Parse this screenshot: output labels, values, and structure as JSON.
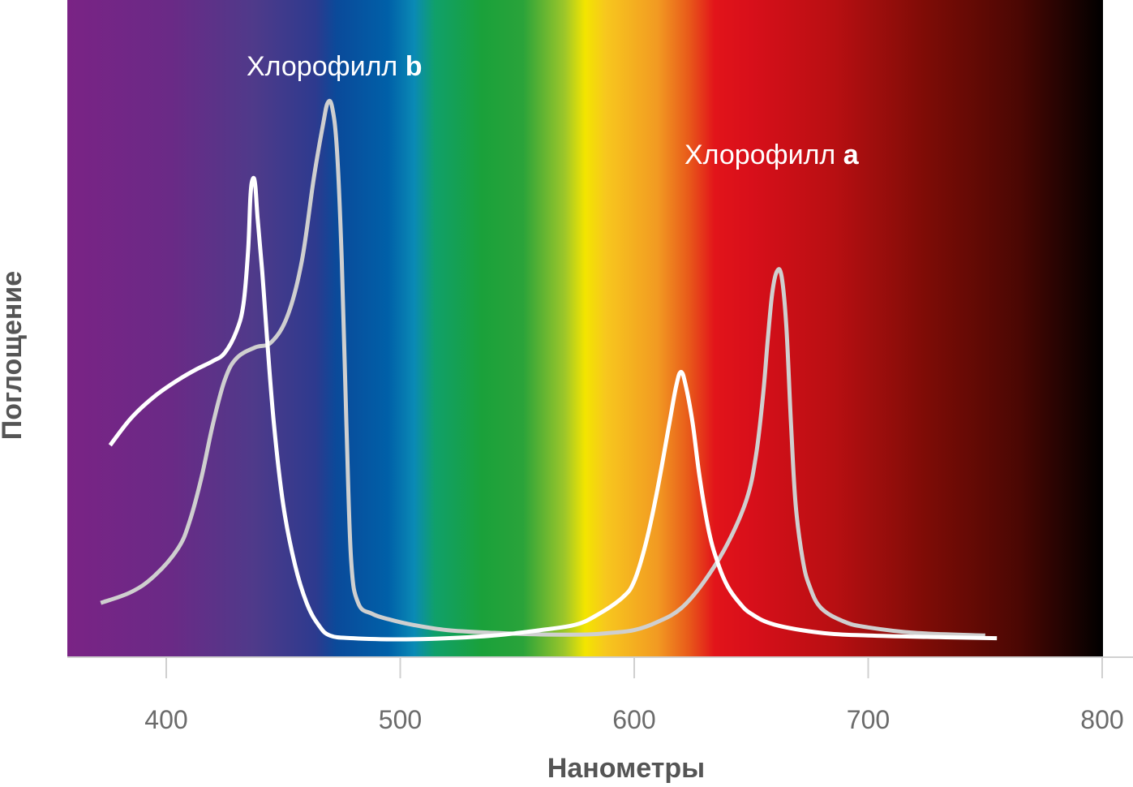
{
  "chart_data": {
    "type": "line",
    "xlabel": "Нанометры",
    "ylabel": "Поглощение",
    "xlim": [
      358,
      800
    ],
    "ylim": [
      0,
      100
    ],
    "xticks": [
      400,
      500,
      600,
      700,
      800
    ],
    "grid": false,
    "legend": "none",
    "background": "visible-spectrum-gradient",
    "series": [
      {
        "label_prefix": "Хлорофилл ",
        "label_bold": "a",
        "color": "#ffffff",
        "points": [
          [
            376,
            36
          ],
          [
            385,
            41
          ],
          [
            395,
            45
          ],
          [
            405,
            48
          ],
          [
            413,
            50
          ],
          [
            420,
            51.5
          ],
          [
            425,
            53
          ],
          [
            430,
            57
          ],
          [
            433,
            62
          ],
          [
            435,
            72
          ],
          [
            436,
            82
          ],
          [
            437,
            85
          ],
          [
            438,
            84
          ],
          [
            439,
            78
          ],
          [
            441,
            68
          ],
          [
            443,
            56
          ],
          [
            446,
            40
          ],
          [
            450,
            25
          ],
          [
            455,
            14
          ],
          [
            460,
            7
          ],
          [
            465,
            3
          ],
          [
            470,
            1
          ],
          [
            480,
            0.5
          ],
          [
            500,
            0.3
          ],
          [
            520,
            0.5
          ],
          [
            540,
            1
          ],
          [
            560,
            2
          ],
          [
            575,
            3
          ],
          [
            585,
            5
          ],
          [
            595,
            8
          ],
          [
            600,
            11
          ],
          [
            605,
            18
          ],
          [
            610,
            28
          ],
          [
            615,
            40
          ],
          [
            618,
            47
          ],
          [
            620,
            49.5
          ],
          [
            622,
            47
          ],
          [
            625,
            40
          ],
          [
            628,
            30
          ],
          [
            632,
            20
          ],
          [
            636,
            14
          ],
          [
            640,
            10
          ],
          [
            645,
            7
          ],
          [
            650,
            5
          ],
          [
            660,
            3
          ],
          [
            680,
            1.5
          ],
          [
            700,
            1
          ],
          [
            730,
            0.7
          ],
          [
            755,
            0.5
          ]
        ]
      },
      {
        "label_prefix": "Хлорофилл ",
        "label_bold": "b",
        "color": "#cfcfcf",
        "points": [
          [
            372,
            7
          ],
          [
            385,
            9
          ],
          [
            395,
            12
          ],
          [
            405,
            17
          ],
          [
            410,
            22
          ],
          [
            415,
            30
          ],
          [
            420,
            40
          ],
          [
            425,
            48
          ],
          [
            430,
            52
          ],
          [
            438,
            54
          ],
          [
            445,
            55
          ],
          [
            452,
            60
          ],
          [
            458,
            70
          ],
          [
            463,
            85
          ],
          [
            467,
            95
          ],
          [
            469,
            99
          ],
          [
            471,
            98
          ],
          [
            473,
            90
          ],
          [
            475,
            70
          ],
          [
            477,
            40
          ],
          [
            479,
            15
          ],
          [
            482,
            7
          ],
          [
            488,
            5
          ],
          [
            495,
            4
          ],
          [
            505,
            3
          ],
          [
            520,
            2
          ],
          [
            540,
            1.5
          ],
          [
            560,
            1.2
          ],
          [
            580,
            1.2
          ],
          [
            590,
            1.5
          ],
          [
            600,
            2
          ],
          [
            610,
            3.5
          ],
          [
            620,
            6
          ],
          [
            630,
            11
          ],
          [
            640,
            18
          ],
          [
            648,
            26
          ],
          [
            652,
            34
          ],
          [
            655,
            45
          ],
          [
            657,
            55
          ],
          [
            659,
            64
          ],
          [
            661,
            68
          ],
          [
            663,
            67
          ],
          [
            665,
            58
          ],
          [
            667,
            40
          ],
          [
            669,
            25
          ],
          [
            672,
            15
          ],
          [
            675,
            10
          ],
          [
            680,
            6
          ],
          [
            690,
            3.5
          ],
          [
            700,
            2.5
          ],
          [
            720,
            1.5
          ],
          [
            750,
            1
          ]
        ]
      }
    ]
  },
  "colors": {
    "axis": "#d0d0d0",
    "tick_text": "#6b6b6b",
    "axis_title_text": "#555555"
  }
}
